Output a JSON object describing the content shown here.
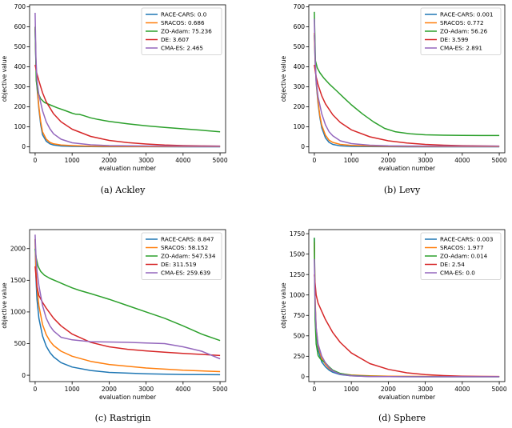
{
  "figure": {
    "captions": [
      "(a)  Ackley",
      "(b)  Levy",
      "(c)  Rastrigin",
      "(d)  Sphere"
    ]
  },
  "colors": {
    "RACE-CARS": "#1f77b4",
    "SRACOS": "#ff7f0e",
    "ZO-Adam": "#2ca02c",
    "DE": "#d62728",
    "CMA-ES": "#9467bd"
  },
  "chart_data": [
    {
      "type": "line",
      "name": "ackley",
      "caption": "(a)  Ackley",
      "xlabel": "evaluation number",
      "ylabel": "objective value",
      "xlim": [
        -150,
        5150
      ],
      "ylim": [
        -30,
        710
      ],
      "xticks": [
        0,
        1000,
        2000,
        3000,
        4000,
        5000
      ],
      "yticks": [
        0,
        100,
        200,
        300,
        400,
        500,
        600,
        700
      ],
      "legend": "top-right",
      "series": [
        {
          "name": "RACE-CARS",
          "legend_label": "RACE-CARS: 0.0",
          "x": [
            0,
            20,
            50,
            100,
            150,
            200,
            300,
            400,
            500,
            700,
            1000,
            1500,
            2000,
            3000,
            4000,
            5000
          ],
          "y": [
            590,
            420,
            300,
            190,
            110,
            60,
            28,
            15,
            9,
            4,
            2,
            1,
            0.5,
            0.2,
            0.1,
            0.0
          ]
        },
        {
          "name": "SRACOS",
          "legend_label": "SRACOS: 0.686",
          "x": [
            0,
            20,
            50,
            100,
            150,
            200,
            300,
            400,
            500,
            700,
            1000,
            1500,
            2000,
            3000,
            4000,
            5000
          ],
          "y": [
            600,
            430,
            310,
            200,
            125,
            75,
            38,
            22,
            15,
            9,
            6,
            3,
            2,
            1.2,
            0.9,
            0.686
          ]
        },
        {
          "name": "ZO-Adam",
          "legend_label": "ZO-Adam: 75.236",
          "x": [
            0,
            30,
            80,
            150,
            250,
            400,
            600,
            800,
            1000,
            1100,
            1200,
            1300,
            1500,
            1700,
            2000,
            2500,
            3000,
            3500,
            4000,
            4500,
            5000
          ],
          "y": [
            600,
            330,
            270,
            240,
            222,
            210,
            195,
            182,
            168,
            163,
            162,
            157,
            145,
            137,
            127,
            115,
            105,
            97,
            90,
            83,
            75.236
          ]
        },
        {
          "name": "DE",
          "legend_label": "DE: 3.607",
          "x": [
            0,
            50,
            100,
            200,
            300,
            500,
            700,
            1000,
            1500,
            2000,
            2500,
            3000,
            3500,
            4000,
            4500,
            5000
          ],
          "y": [
            410,
            365,
            330,
            270,
            225,
            165,
            125,
            88,
            52,
            32,
            21,
            14,
            9,
            6,
            4.5,
            3.607
          ]
        },
        {
          "name": "CMA-ES",
          "legend_label": "CMA-ES: 2.465",
          "x": [
            0,
            20,
            50,
            100,
            200,
            300,
            400,
            500,
            700,
            1000,
            1500,
            2000,
            3000,
            4000,
            5000
          ],
          "y": [
            670,
            450,
            330,
            260,
            180,
            125,
            90,
            65,
            38,
            20,
            10,
            6,
            4,
            3,
            2.465
          ]
        }
      ]
    },
    {
      "type": "line",
      "name": "levy",
      "caption": "(b)  Levy",
      "xlabel": "evaluation number",
      "ylabel": "objective value",
      "xlim": [
        -150,
        5150
      ],
      "ylim": [
        -30,
        710
      ],
      "xticks": [
        0,
        1000,
        2000,
        3000,
        4000,
        5000
      ],
      "yticks": [
        0,
        100,
        200,
        300,
        400,
        500,
        600,
        700
      ],
      "legend": "top-right",
      "series": [
        {
          "name": "RACE-CARS",
          "legend_label": "RACE-CARS: 0.001",
          "x": [
            0,
            20,
            50,
            100,
            150,
            200,
            300,
            400,
            500,
            700,
            1000,
            1500,
            2000,
            3000,
            4000,
            5000
          ],
          "y": [
            560,
            430,
            320,
            215,
            145,
            95,
            45,
            22,
            12,
            5,
            2,
            0.8,
            0.3,
            0.1,
            0.01,
            0.001
          ]
        },
        {
          "name": "SRACOS",
          "legend_label": "SRACOS: 0.772",
          "x": [
            0,
            20,
            50,
            100,
            150,
            200,
            300,
            400,
            500,
            700,
            1000,
            1500,
            2000,
            3000,
            4000,
            5000
          ],
          "y": [
            570,
            440,
            330,
            225,
            155,
            108,
            58,
            33,
            22,
            12,
            7,
            4,
            2.5,
            1.5,
            1,
            0.772
          ]
        },
        {
          "name": "ZO-Adam",
          "legend_label": "ZO-Adam: 56.26",
          "x": [
            0,
            30,
            80,
            150,
            250,
            400,
            600,
            800,
            1000,
            1300,
            1600,
            1900,
            2200,
            2600,
            3000,
            3500,
            4000,
            4500,
            5000
          ],
          "y": [
            675,
            430,
            395,
            370,
            345,
            315,
            280,
            245,
            210,
            165,
            125,
            92,
            75,
            65,
            60,
            58,
            57,
            56.5,
            56.26
          ]
        },
        {
          "name": "DE",
          "legend_label": "DE: 3.599",
          "x": [
            0,
            50,
            100,
            200,
            300,
            500,
            700,
            1000,
            1500,
            2000,
            2500,
            3000,
            3500,
            4000,
            4500,
            5000
          ],
          "y": [
            410,
            350,
            310,
            255,
            215,
            160,
            122,
            85,
            50,
            30,
            19,
            12,
            8,
            5.5,
            4.3,
            3.599
          ]
        },
        {
          "name": "CMA-ES",
          "legend_label": "CMA-ES: 2.891",
          "x": [
            0,
            20,
            50,
            100,
            200,
            300,
            400,
            500,
            700,
            1000,
            1500,
            2000,
            3000,
            4000,
            5000
          ],
          "y": [
            640,
            450,
            330,
            250,
            165,
            110,
            75,
            55,
            30,
            16,
            8,
            5,
            3.8,
            3.2,
            2.891
          ]
        }
      ]
    },
    {
      "type": "line",
      "name": "rastrigin",
      "caption": "(c)  Rastrigin",
      "xlabel": "evaluation number",
      "ylabel": "objective value",
      "xlim": [
        -150,
        5150
      ],
      "ylim": [
        -100,
        2300
      ],
      "xticks": [
        0,
        1000,
        2000,
        3000,
        4000,
        5000
      ],
      "yticks": [
        0,
        500,
        1000,
        1500,
        2000
      ],
      "legend": "top-right",
      "series": [
        {
          "name": "RACE-CARS",
          "legend_label": "RACE-CARS: 8.847",
          "x": [
            0,
            20,
            50,
            100,
            200,
            300,
            400,
            500,
            700,
            1000,
            1500,
            2000,
            3000,
            4000,
            5000
          ],
          "y": [
            2150,
            1550,
            1200,
            900,
            620,
            460,
            360,
            290,
            200,
            130,
            75,
            45,
            22,
            12,
            8.847
          ]
        },
        {
          "name": "SRACOS",
          "legend_label": "SRACOS: 58.152",
          "x": [
            0,
            20,
            50,
            100,
            200,
            300,
            400,
            500,
            700,
            1000,
            1500,
            2000,
            3000,
            4000,
            5000
          ],
          "y": [
            2150,
            1700,
            1380,
            1100,
            800,
            640,
            540,
            470,
            380,
            300,
            220,
            170,
            115,
            80,
            58.152
          ]
        },
        {
          "name": "ZO-Adam",
          "legend_label": "ZO-Adam: 547.534",
          "x": [
            0,
            30,
            80,
            150,
            250,
            400,
            600,
            800,
            1000,
            1200,
            1500,
            2000,
            2500,
            3000,
            3500,
            4000,
            4500,
            5000
          ],
          "y": [
            2000,
            1850,
            1720,
            1640,
            1580,
            1530,
            1480,
            1430,
            1380,
            1340,
            1290,
            1200,
            1100,
            1000,
            900,
            780,
            650,
            547.534
          ]
        },
        {
          "name": "DE",
          "legend_label": "DE: 311.519",
          "x": [
            0,
            50,
            100,
            200,
            300,
            500,
            700,
            1000,
            1500,
            2000,
            2500,
            3000,
            3500,
            4000,
            4500,
            5000
          ],
          "y": [
            1720,
            1400,
            1260,
            1150,
            1060,
            900,
            780,
            650,
            520,
            450,
            410,
            385,
            365,
            345,
            330,
            311.519
          ]
        },
        {
          "name": "CMA-ES",
          "legend_label": "CMA-ES: 259.639",
          "x": [
            0,
            20,
            50,
            100,
            200,
            300,
            400,
            500,
            700,
            1000,
            1500,
            2000,
            2500,
            3000,
            3500,
            4000,
            4500,
            5000
          ],
          "y": [
            2220,
            1900,
            1650,
            1420,
            1100,
            900,
            780,
            700,
            600,
            560,
            530,
            525,
            520,
            510,
            500,
            450,
            380,
            259.639
          ]
        }
      ]
    },
    {
      "type": "line",
      "name": "sphere",
      "caption": "(d)  Sphere",
      "xlabel": "evaluation number",
      "ylabel": "objective value",
      "xlim": [
        -150,
        5150
      ],
      "ylim": [
        -60,
        1800
      ],
      "xticks": [
        0,
        1000,
        2000,
        3000,
        4000,
        5000
      ],
      "yticks": [
        0,
        250,
        500,
        750,
        1000,
        1250,
        1500,
        1750
      ],
      "legend": "top-right",
      "series": [
        {
          "name": "RACE-CARS",
          "legend_label": "RACE-CARS: 0.003",
          "x": [
            0,
            20,
            50,
            100,
            200,
            300,
            400,
            500,
            700,
            1000,
            1500,
            2000,
            3000,
            4000,
            5000
          ],
          "y": [
            1700,
            900,
            550,
            330,
            180,
            120,
            80,
            55,
            25,
            10,
            3,
            1,
            0.1,
            0.01,
            0.003
          ]
        },
        {
          "name": "SRACOS",
          "legend_label": "SRACOS: 1.977",
          "x": [
            0,
            20,
            50,
            100,
            200,
            300,
            400,
            500,
            700,
            1000,
            1500,
            2000,
            3000,
            4000,
            5000
          ],
          "y": [
            1650,
            950,
            600,
            380,
            220,
            150,
            100,
            70,
            38,
            20,
            10,
            6,
            3.5,
            2.5,
            1.977
          ]
        },
        {
          "name": "ZO-Adam",
          "legend_label": "ZO-Adam: 0.014",
          "x": [
            0,
            20,
            50,
            100,
            150,
            200,
            300,
            400,
            500,
            700,
            1000,
            1500,
            2000,
            3000,
            4000,
            5000
          ],
          "y": [
            1700,
            700,
            400,
            260,
            225,
            200,
            170,
            120,
            80,
            40,
            15,
            5,
            1.5,
            0.2,
            0.03,
            0.014
          ]
        },
        {
          "name": "DE",
          "legend_label": "DE: 2.54",
          "x": [
            0,
            50,
            100,
            200,
            300,
            500,
            700,
            1000,
            1500,
            2000,
            2500,
            3000,
            3500,
            4000,
            4500,
            5000
          ],
          "y": [
            1250,
            1000,
            900,
            800,
            700,
            540,
            420,
            290,
            160,
            90,
            48,
            25,
            13,
            7,
            4,
            2.54
          ]
        },
        {
          "name": "CMA-ES",
          "legend_label": "CMA-ES: 0.0",
          "x": [
            0,
            20,
            50,
            100,
            200,
            300,
            400,
            500,
            700,
            1000,
            1500,
            2000,
            3000,
            4000,
            5000
          ],
          "y": [
            1440,
            900,
            600,
            400,
            250,
            170,
            110,
            70,
            30,
            10,
            2,
            0.5,
            0.05,
            0.01,
            0.0
          ]
        }
      ]
    }
  ]
}
